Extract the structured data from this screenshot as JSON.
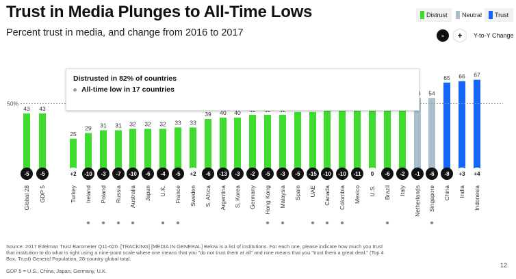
{
  "title": "Trust in Media Plunges to All-Time Lows",
  "subtitle": "Percent trust in media, and change from 2016 to 2017",
  "legend": {
    "distrust": "Distrust",
    "neutral": "Neutral",
    "trust": "Trust"
  },
  "yoy_legend": {
    "negative_symbol": "-",
    "positive_symbol": "+",
    "label": "Y-to-Y Change"
  },
  "annotation": {
    "line1": "Distrusted in 82% of countries",
    "line2": "All-time low in 17 countries"
  },
  "reference_line_label": "50%",
  "colors": {
    "distrust": "#3ddc2e",
    "neutral": "#a9bfcc",
    "trust": "#1466f5",
    "change_badge": "#111111"
  },
  "chart_data": {
    "type": "bar",
    "title": "Trust in Media Plunges to All-Time Lows",
    "subtitle": "Percent trust in media, and change from 2016 to 2017",
    "ylim": [
      0,
      100
    ],
    "reference_line": 50,
    "categories": [
      "Global 28",
      "GDP 5",
      "Turkey",
      "Ireland",
      "Poland",
      "Russia",
      "Australia",
      "Japan",
      "U.K.",
      "France",
      "Sweden",
      "S. Africa",
      "Argentina",
      "S. Korea",
      "Germany",
      "Hong Kong",
      "Malaysia",
      "Spain",
      "UAE",
      "Canada",
      "Colombia",
      "Mexico",
      "U.S.",
      "Brazil",
      "Italy",
      "Netherlands",
      "Singapore",
      "China",
      "India",
      "Indonesia"
    ],
    "values": [
      43,
      43,
      25,
      29,
      31,
      31,
      32,
      32,
      32,
      33,
      33,
      39,
      40,
      40,
      42,
      42,
      42,
      44,
      44,
      45,
      45,
      47,
      47,
      48,
      48,
      54,
      54,
      65,
      66,
      67
    ],
    "value_labels": [
      "43",
      "43",
      "25",
      "29",
      "31",
      "31",
      "32",
      "32",
      "32",
      "33",
      "33",
      "39",
      "40",
      "40",
      "42",
      "42",
      "42",
      "44",
      "44",
      "45",
      "45",
      "47",
      "47",
      "48",
      "48",
      "54",
      "54",
      "65",
      "66",
      "67"
    ],
    "change_labels": [
      "-5",
      "-5",
      "+2",
      "-10",
      "-3",
      "-7",
      "-10",
      "-6",
      "-4",
      "-5",
      "+2",
      "-6",
      "-13",
      "-3",
      "-2",
      "-5",
      "-3",
      "-5",
      "-15",
      "-10",
      "-10",
      "-11",
      "0",
      "-6",
      "-2",
      "-1",
      "-6",
      "-8",
      "+3",
      "+4"
    ],
    "status": [
      "distrust",
      "distrust",
      "distrust",
      "distrust",
      "distrust",
      "distrust",
      "distrust",
      "distrust",
      "distrust",
      "distrust",
      "distrust",
      "distrust",
      "distrust",
      "distrust",
      "distrust",
      "distrust",
      "distrust",
      "distrust",
      "distrust",
      "distrust",
      "distrust",
      "distrust",
      "distrust",
      "distrust",
      "distrust",
      "neutral",
      "neutral",
      "trust",
      "trust",
      "trust"
    ],
    "all_time_low": [
      false,
      false,
      false,
      true,
      true,
      true,
      true,
      false,
      true,
      true,
      false,
      false,
      false,
      false,
      false,
      true,
      true,
      false,
      true,
      true,
      true,
      false,
      false,
      true,
      false,
      false,
      true,
      false,
      false,
      false
    ]
  },
  "source_note": "Source: 2017 Edelman Trust Barometer Q11-620. [TRACKING] [MEDIA IN GENERAL] Below is a list of institutions. For each one, please indicate how much you trust that institution to do what is right using a nine-point scale where one means that you \"do not trust them at all\" and nine means that you \"trust them a great deal.\" (Top 4 Box, Trust) General Population, 28-country global total.",
  "gdp_note": "GDP 5 = U.S., China, Japan, Germany, U.K.",
  "page_number": "12"
}
